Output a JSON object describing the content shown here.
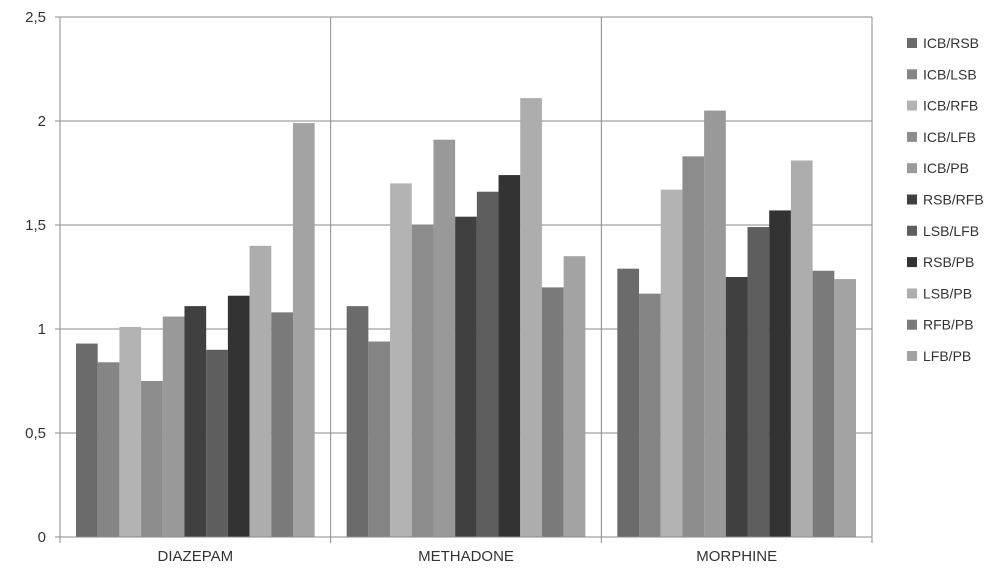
{
  "chart_data": {
    "type": "bar",
    "title": "",
    "xlabel": "",
    "ylabel": "",
    "categories": [
      "DIAZEPAM",
      "METHADONE",
      "MORPHINE"
    ],
    "ylim": [
      0,
      2.5
    ],
    "yticks": [
      0,
      0.5,
      1,
      1.5,
      2,
      2.5
    ],
    "ytick_labels": [
      "0",
      "0,5",
      "1",
      "1,5",
      "2",
      "2,5"
    ],
    "grid": true,
    "legend_position": "right",
    "series": [
      {
        "name": "ICB/RSB",
        "color": "#6b6b6b",
        "values": [
          0.93,
          1.11,
          1.29
        ]
      },
      {
        "name": "ICB/LSB",
        "color": "#858585",
        "values": [
          0.84,
          0.94,
          1.17
        ]
      },
      {
        "name": "ICB/RFB",
        "color": "#b3b3b3",
        "values": [
          1.01,
          1.7,
          1.67
        ]
      },
      {
        "name": "ICB/LFB",
        "color": "#8c8c8c",
        "values": [
          0.75,
          1.5,
          1.83
        ]
      },
      {
        "name": "ICB/PB",
        "color": "#999999",
        "values": [
          1.06,
          1.91,
          2.05
        ]
      },
      {
        "name": "RSB/RFB",
        "color": "#404040",
        "values": [
          1.11,
          1.54,
          1.25
        ]
      },
      {
        "name": "LSB/LFB",
        "color": "#5e5e5e",
        "values": [
          0.9,
          1.66,
          1.49
        ]
      },
      {
        "name": "RSB/PB",
        "color": "#333333",
        "values": [
          1.16,
          1.74,
          1.57
        ]
      },
      {
        "name": "LSB/PB",
        "color": "#adadad",
        "values": [
          1.4,
          2.11,
          1.81
        ]
      },
      {
        "name": "RFB/PB",
        "color": "#7a7a7a",
        "values": [
          1.08,
          1.2,
          1.28
        ]
      },
      {
        "name": "LFB/PB",
        "color": "#a3a3a3",
        "values": [
          1.99,
          1.35,
          1.24
        ]
      }
    ]
  }
}
